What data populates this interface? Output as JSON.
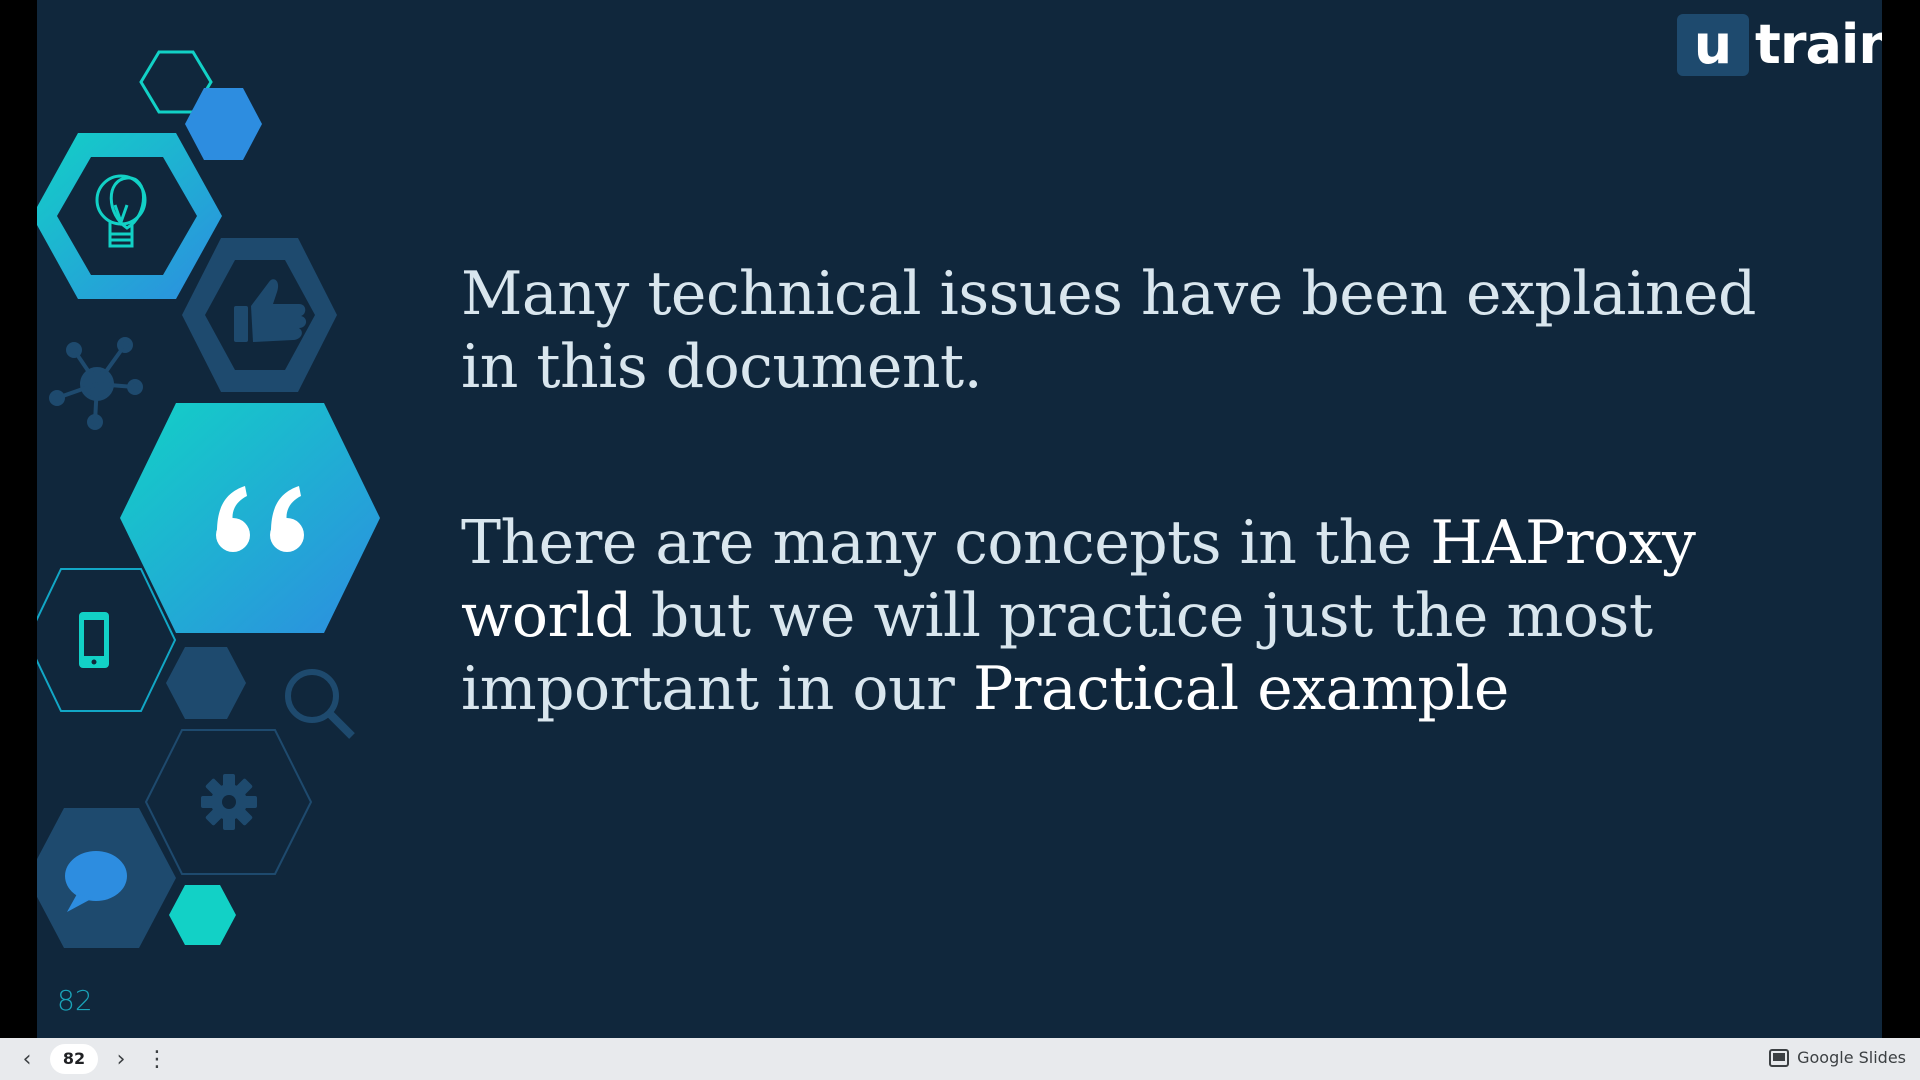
{
  "slide": {
    "logo_box": "u",
    "logo_text": "train",
    "paragraph1": "Many technical issues have been explained in this document.",
    "p2_intro": "There are many concepts in the ",
    "p2_bold1": "HAProxy world",
    "p2_mid": " but we will practice just the most important in our ",
    "p2_bold2": "Practical example",
    "slide_number": "82"
  },
  "viewer": {
    "prev_icon": "‹",
    "page_indicator": "82",
    "next_icon": "›",
    "more_icon": "⋮",
    "brand_label": "Google Slides"
  },
  "colors": {
    "background": "#10273c",
    "accent_teal": "#12d1c6",
    "accent_blue": "#2d8de0",
    "text": "#d9e6ee"
  },
  "icons": [
    "lightbulb-icon",
    "thumbs-up-icon",
    "network-icon",
    "quote-icon",
    "smartphone-icon",
    "search-icon",
    "gear-icon",
    "chat-bubble-icon",
    "presentation-icon"
  ]
}
